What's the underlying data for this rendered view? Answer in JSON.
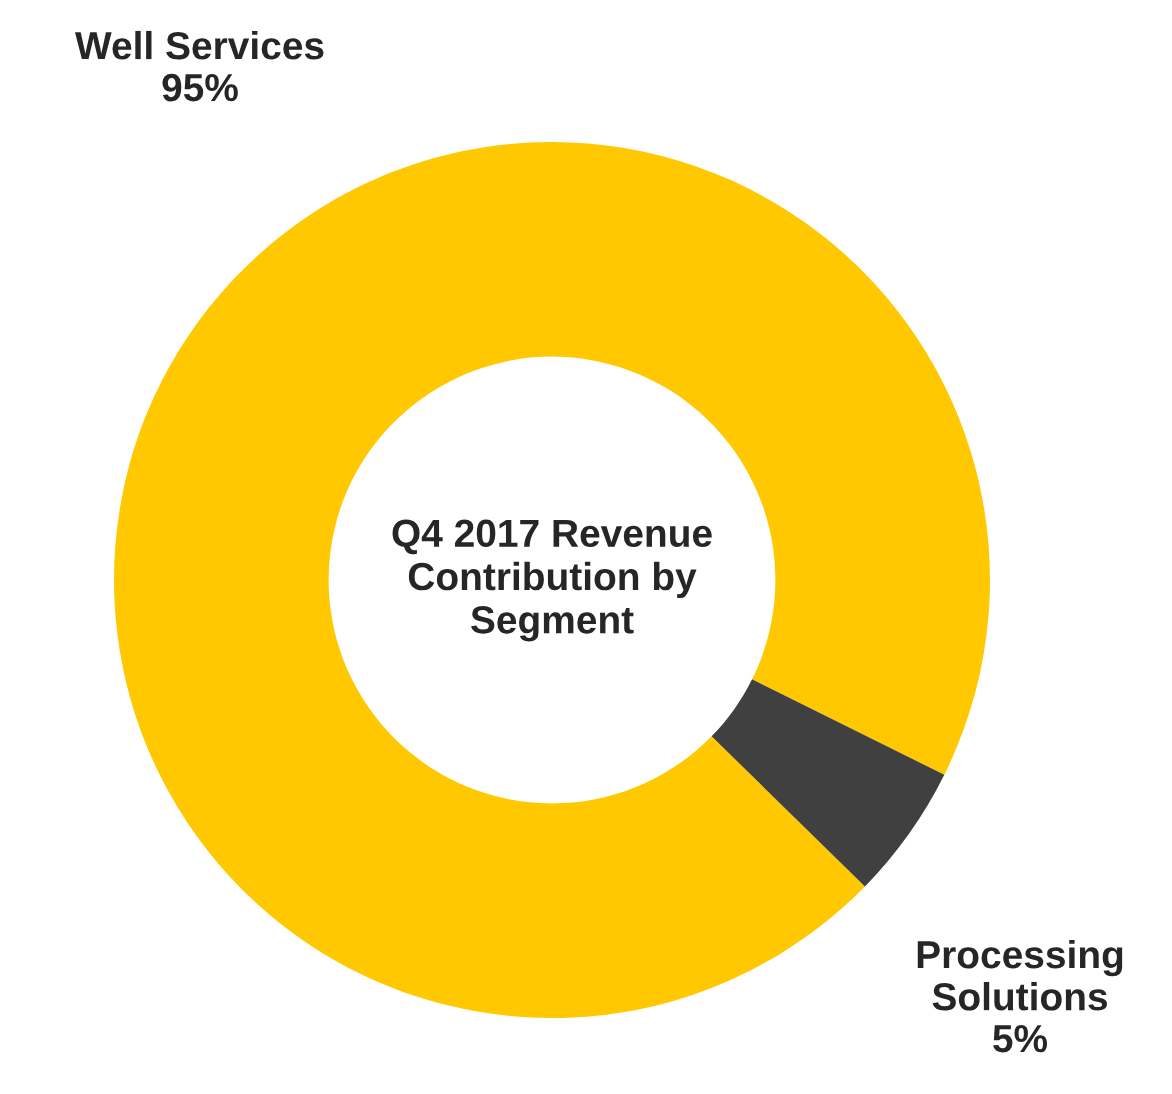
{
  "chart_data": {
    "type": "donut",
    "title": "Q4 2017 Revenue Contribution by Segment",
    "categories": [
      "Well Services",
      "Processing Solutions"
    ],
    "values": [
      95,
      5
    ],
    "colors": [
      "#ffc800",
      "#404040"
    ],
    "value_labels": [
      "95%",
      "5%"
    ],
    "legend": false
  }
}
